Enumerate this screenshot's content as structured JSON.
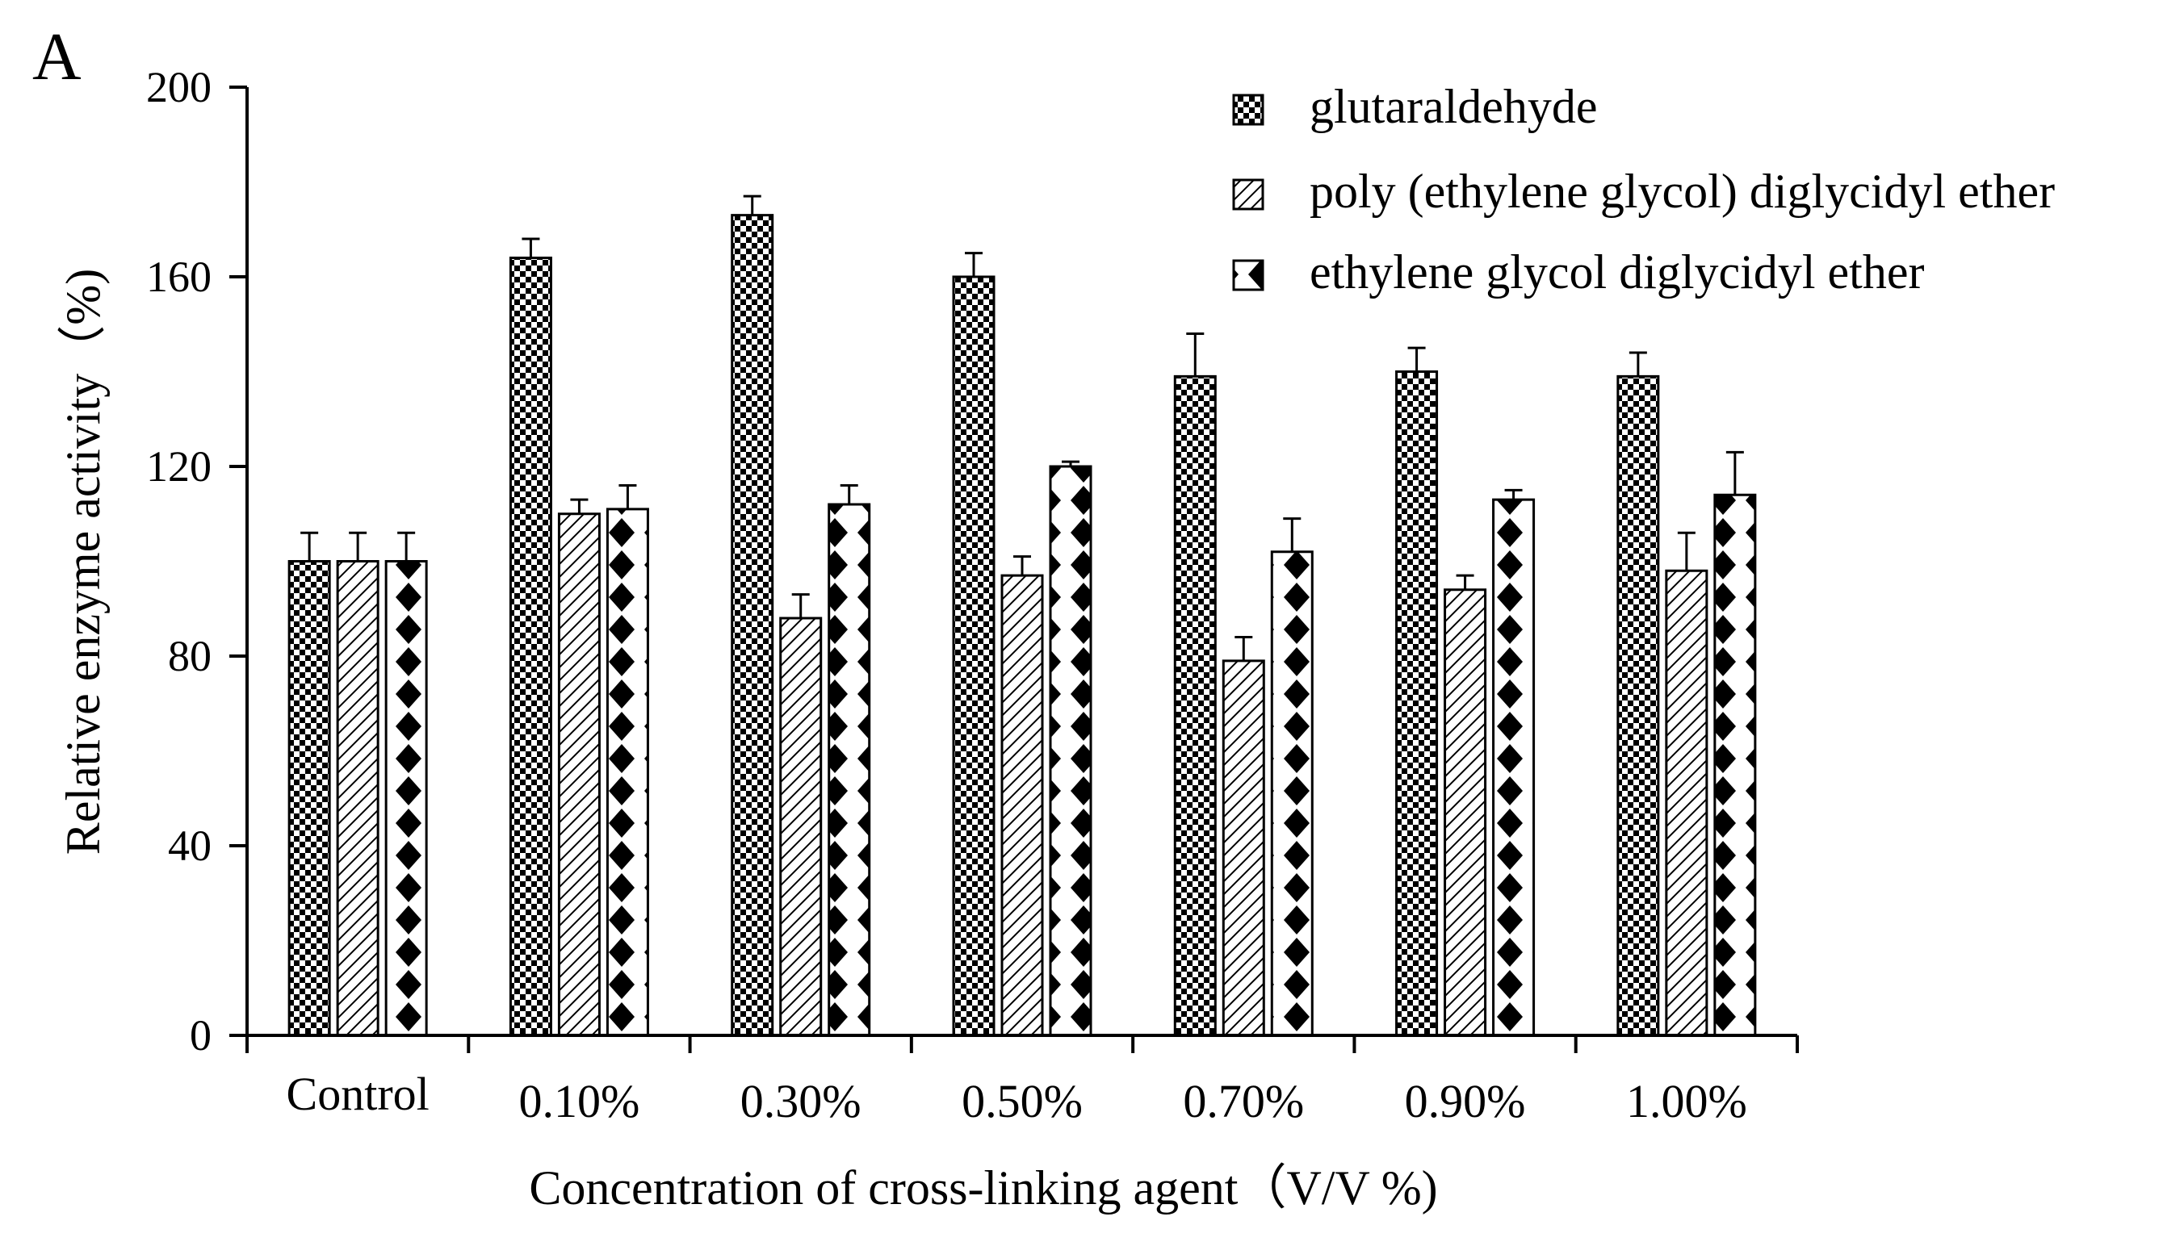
{
  "panel_label": "A",
  "chart_data": {
    "type": "bar",
    "title": "",
    "xlabel": "Concentration of cross-linking agent（V/V %)",
    "ylabel": "Relative enzyme activity（%)",
    "ylim": [
      0,
      200
    ],
    "yticks": [
      0,
      40,
      80,
      120,
      160,
      200
    ],
    "ytick_labels": [
      "0",
      "40",
      "80",
      "120",
      "160",
      "200"
    ],
    "categories": [
      "Control",
      "0.10%",
      "0.30%",
      "0.50%",
      "0.70%",
      "0.90%",
      "1.00%"
    ],
    "legend_position": "top-right",
    "series": [
      {
        "name": "glutaraldehyde",
        "pattern": "checker",
        "values": [
          100,
          164,
          173,
          160,
          139,
          140,
          139
        ],
        "errors": [
          6,
          4,
          4,
          5,
          9,
          5,
          5
        ]
      },
      {
        "name": "poly (ethylene glycol) diglycidyl ether",
        "pattern": "diagonal",
        "values": [
          100,
          110,
          88,
          97,
          79,
          94,
          98
        ],
        "errors": [
          6,
          3,
          5,
          4,
          5,
          3,
          8
        ]
      },
      {
        "name": "ethylene glycol diglycidyl ether",
        "pattern": "diamond",
        "values": [
          100,
          111,
          112,
          120,
          102,
          113,
          114
        ],
        "errors": [
          6,
          5,
          4,
          1,
          7,
          2,
          9
        ]
      }
    ]
  }
}
